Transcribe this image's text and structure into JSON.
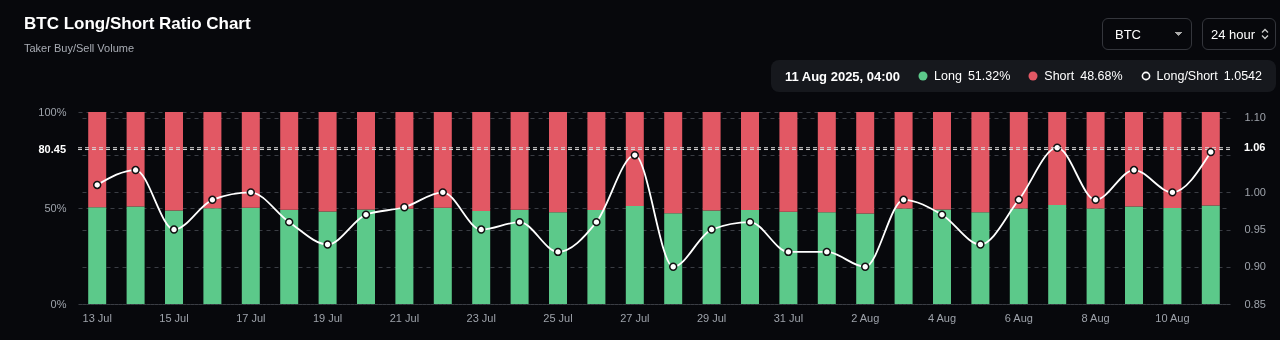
{
  "chart_data": {
    "type": "bar",
    "title": "BTC Long/Short Ratio Chart",
    "subtitle": "Taker Buy/Sell Volume",
    "stacked": true,
    "grid": true,
    "categories": [
      "13 Jul",
      null,
      "15 Jul",
      null,
      "17 Jul",
      null,
      "19 Jul",
      null,
      "21 Jul",
      null,
      "23 Jul",
      null,
      "25 Jul",
      null,
      "27 Jul",
      null,
      "29 Jul",
      null,
      "31 Jul",
      null,
      "2 Aug",
      null,
      "4 Aug",
      null,
      "6 Aug",
      null,
      "8 Aug",
      null,
      "10 Aug",
      null
    ],
    "series": [
      {
        "name": "Long",
        "color": "#5cc98a",
        "values": [
          50.4,
          50.8,
          48.7,
          49.9,
          50.1,
          49.1,
          48.2,
          49.2,
          49.6,
          50.1,
          48.5,
          49.1,
          47.8,
          48.9,
          51.1,
          47.3,
          48.7,
          48.9,
          48.0,
          47.8,
          47.2,
          49.7,
          49.2,
          47.8,
          49.7,
          51.5,
          49.7,
          50.8,
          50.0,
          51.32
        ]
      },
      {
        "name": "Short",
        "color": "#e25864",
        "values": [
          49.6,
          49.2,
          51.3,
          50.1,
          49.9,
          50.9,
          51.8,
          50.8,
          50.4,
          49.9,
          51.5,
          50.9,
          52.2,
          51.1,
          48.9,
          52.7,
          51.3,
          51.1,
          52.0,
          52.2,
          52.8,
          50.3,
          50.8,
          52.2,
          50.3,
          48.5,
          50.3,
          49.2,
          50.0,
          48.68
        ]
      },
      {
        "name": "Long/Short",
        "type": "line",
        "axis": "y2",
        "color": "#ffffff",
        "marker": "circle",
        "line_style": "solid",
        "values": [
          1.01,
          1.03,
          0.95,
          0.99,
          1.0,
          0.96,
          0.93,
          0.97,
          0.98,
          1.0,
          0.95,
          0.96,
          0.92,
          0.96,
          1.05,
          0.9,
          0.95,
          0.96,
          0.92,
          0.92,
          0.9,
          0.99,
          0.97,
          0.93,
          0.99,
          1.06,
          0.99,
          1.03,
          1.0,
          1.0542
        ]
      }
    ],
    "ylim": [
      0,
      100
    ],
    "yticks": [
      {
        "value": 0,
        "label": "0%"
      },
      {
        "value": 50,
        "label": "50%"
      },
      {
        "value": 100,
        "label": "100%"
      }
    ],
    "y2lim": [
      0.85,
      1.108
    ],
    "y2ticks": [
      0.85,
      {
        "value": 0.9,
        "label": "0.90"
      },
      0.95,
      {
        "value": 1.0,
        "label": "1.00"
      },
      {
        "value": 1.05,
        "label": null
      },
      {
        "value": 1.1,
        "label": "1.10"
      }
    ],
    "ref_lines": [
      {
        "axis": "y",
        "value": 80.45,
        "label": "80.45",
        "line_style": "dashed",
        "color": "#d9d9d9"
      },
      {
        "axis": "y2",
        "value": 1.06,
        "label": "1.06",
        "line_style": "dashed",
        "color": "#d9d9d9"
      }
    ],
    "legend": "top right",
    "annotations": [
      "BTC",
      "24 hour",
      "11 Aug 2025, 04:00",
      "51.32%",
      "48.68%",
      "1.0542"
    ]
  }
}
